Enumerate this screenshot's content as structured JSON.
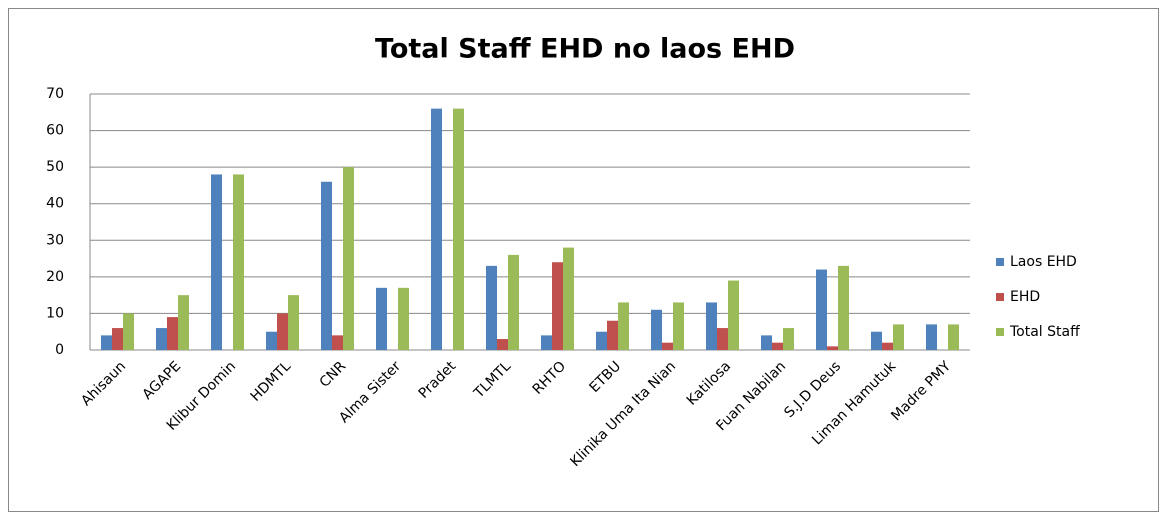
{
  "chart_data": {
    "type": "bar",
    "title": "Total Staff EHD no laos EHD",
    "categories": [
      "Ahisaun",
      "AGAPE",
      "Klibur Domin",
      "HDMTL",
      "CNR",
      "Alma Sister",
      "Pradet",
      "TLMTL",
      "RHTO",
      "ETBU",
      "Klinika Uma Ita Nian",
      "Katilosa",
      "Fuan Nabilan",
      "S.J.D Deus",
      "Liman Hamutuk",
      "Madre PMY"
    ],
    "series": [
      {
        "name": "Laos EHD",
        "color": "#4f81bd",
        "values": [
          4,
          6,
          48,
          5,
          46,
          17,
          66,
          23,
          4,
          5,
          11,
          13,
          4,
          22,
          5,
          7
        ]
      },
      {
        "name": "EHD",
        "color": "#c0504d",
        "values": [
          6,
          9,
          0,
          10,
          4,
          0,
          0,
          3,
          24,
          8,
          2,
          6,
          2,
          1,
          2,
          0
        ]
      },
      {
        "name": "Total Staff",
        "color": "#9bbb59",
        "values": [
          10,
          15,
          48,
          15,
          50,
          17,
          66,
          26,
          28,
          13,
          13,
          19,
          6,
          23,
          7,
          7
        ]
      }
    ],
    "ylim": [
      0,
      70
    ],
    "yticks": [
      0,
      10,
      20,
      30,
      40,
      50,
      60,
      70
    ],
    "grid": true,
    "legend": "right"
  }
}
